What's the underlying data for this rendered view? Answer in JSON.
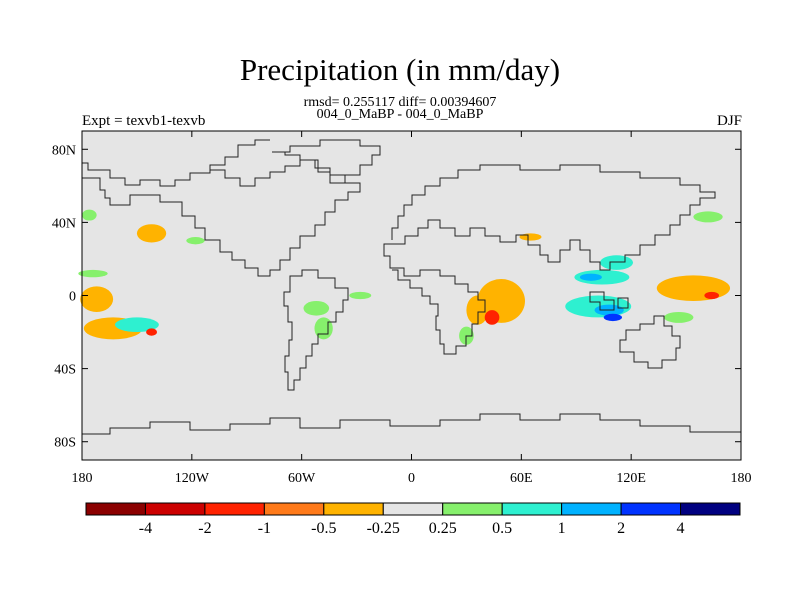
{
  "chart_data": {
    "type": "heatmap",
    "title": "Precipitation (in mm/day)",
    "stats": "rmsd= 0.255117 diff= 0.00394607",
    "runs": "004_0_MaBP - 004_0_MaBP",
    "expt": "Expt = texvb1-texvb",
    "season": "DJF",
    "xlim": [
      -180,
      180
    ],
    "ylim": [
      -90,
      90
    ],
    "xticks": [
      {
        "value": -180,
        "label": "180"
      },
      {
        "value": -120,
        "label": "120W"
      },
      {
        "value": -60,
        "label": "60W"
      },
      {
        "value": 0,
        "label": "0"
      },
      {
        "value": 60,
        "label": "60E"
      },
      {
        "value": 120,
        "label": "120E"
      },
      {
        "value": 180,
        "label": "180"
      }
    ],
    "yticks": [
      {
        "value": 80,
        "label": "80N"
      },
      {
        "value": 40,
        "label": "40N"
      },
      {
        "value": 0,
        "label": "0"
      },
      {
        "value": -40,
        "label": "40S"
      },
      {
        "value": -80,
        "label": "80S"
      }
    ],
    "colorbar": {
      "colors": [
        "#8b0000",
        "#cc0000",
        "#ff2200",
        "#ff7a1a",
        "#ffb300",
        "#e5e5e5",
        "#86f06c",
        "#2ef0d0",
        "#00b2ff",
        "#0033ff",
        "#000080"
      ],
      "labels": [
        "-4",
        "-2",
        "-1",
        "-0.5",
        "-0.25",
        "0.25",
        "0.5",
        "1",
        "2",
        "4"
      ]
    },
    "anomalies": [
      {
        "lon": -163,
        "lat": -18,
        "rlon": 16,
        "rlat": 6,
        "value": -0.5
      },
      {
        "lon": -172,
        "lat": -2,
        "rlon": 9,
        "rlat": 7,
        "value": -0.5
      },
      {
        "lon": -150,
        "lat": -16,
        "rlon": 12,
        "rlat": 4,
        "value": 0.75
      },
      {
        "lon": -142,
        "lat": -20,
        "rlon": 3,
        "rlat": 2,
        "value": -1.5
      },
      {
        "lon": -142,
        "lat": 34,
        "rlon": 8,
        "rlat": 5,
        "value": -0.3
      },
      {
        "lon": -176,
        "lat": 44,
        "rlon": 4,
        "rlat": 3,
        "value": 0.3
      },
      {
        "lon": -174,
        "lat": 12,
        "rlon": 8,
        "rlat": 2,
        "value": 0.3
      },
      {
        "lon": -118,
        "lat": 30,
        "rlon": 5,
        "rlat": 2,
        "value": 0.3
      },
      {
        "lon": -52,
        "lat": -7,
        "rlon": 7,
        "rlat": 4,
        "value": 0.3
      },
      {
        "lon": -48,
        "lat": -18,
        "rlon": 5,
        "rlat": 6,
        "value": 0.3
      },
      {
        "lon": -28,
        "lat": 0,
        "rlon": 6,
        "rlat": 2,
        "value": 0.3
      },
      {
        "lon": 49,
        "lat": -3,
        "rlon": 13,
        "rlat": 12,
        "value": -0.5
      },
      {
        "lon": 36,
        "lat": -8,
        "rlon": 6,
        "rlat": 8,
        "value": -0.5
      },
      {
        "lon": 44,
        "lat": -12,
        "rlon": 4,
        "rlat": 4,
        "value": -1.5
      },
      {
        "lon": 30,
        "lat": -22,
        "rlon": 4,
        "rlat": 5,
        "value": 0.3
      },
      {
        "lon": 65,
        "lat": 32,
        "rlon": 6,
        "rlat": 2,
        "value": -0.3
      },
      {
        "lon": 104,
        "lat": 10,
        "rlon": 15,
        "rlat": 4,
        "value": 0.75
      },
      {
        "lon": 112,
        "lat": 18,
        "rlon": 9,
        "rlat": 4,
        "value": 0.75
      },
      {
        "lon": 98,
        "lat": 10,
        "rlon": 6,
        "rlat": 2,
        "value": 1.5
      },
      {
        "lon": 102,
        "lat": -6,
        "rlon": 18,
        "rlat": 6,
        "value": 0.75
      },
      {
        "lon": 108,
        "lat": -8,
        "rlon": 8,
        "rlat": 3,
        "value": 1.5
      },
      {
        "lon": 110,
        "lat": -12,
        "rlon": 5,
        "rlat": 2,
        "value": 3
      },
      {
        "lon": 154,
        "lat": 4,
        "rlon": 20,
        "rlat": 7,
        "value": -0.5
      },
      {
        "lon": 164,
        "lat": 0,
        "rlon": 4,
        "rlat": 2,
        "value": -1.5
      },
      {
        "lon": 146,
        "lat": -12,
        "rlon": 8,
        "rlat": 3,
        "value": 0.3
      },
      {
        "lon": 162,
        "lat": 43,
        "rlon": 8,
        "rlat": 3,
        "value": 0.3
      }
    ]
  }
}
